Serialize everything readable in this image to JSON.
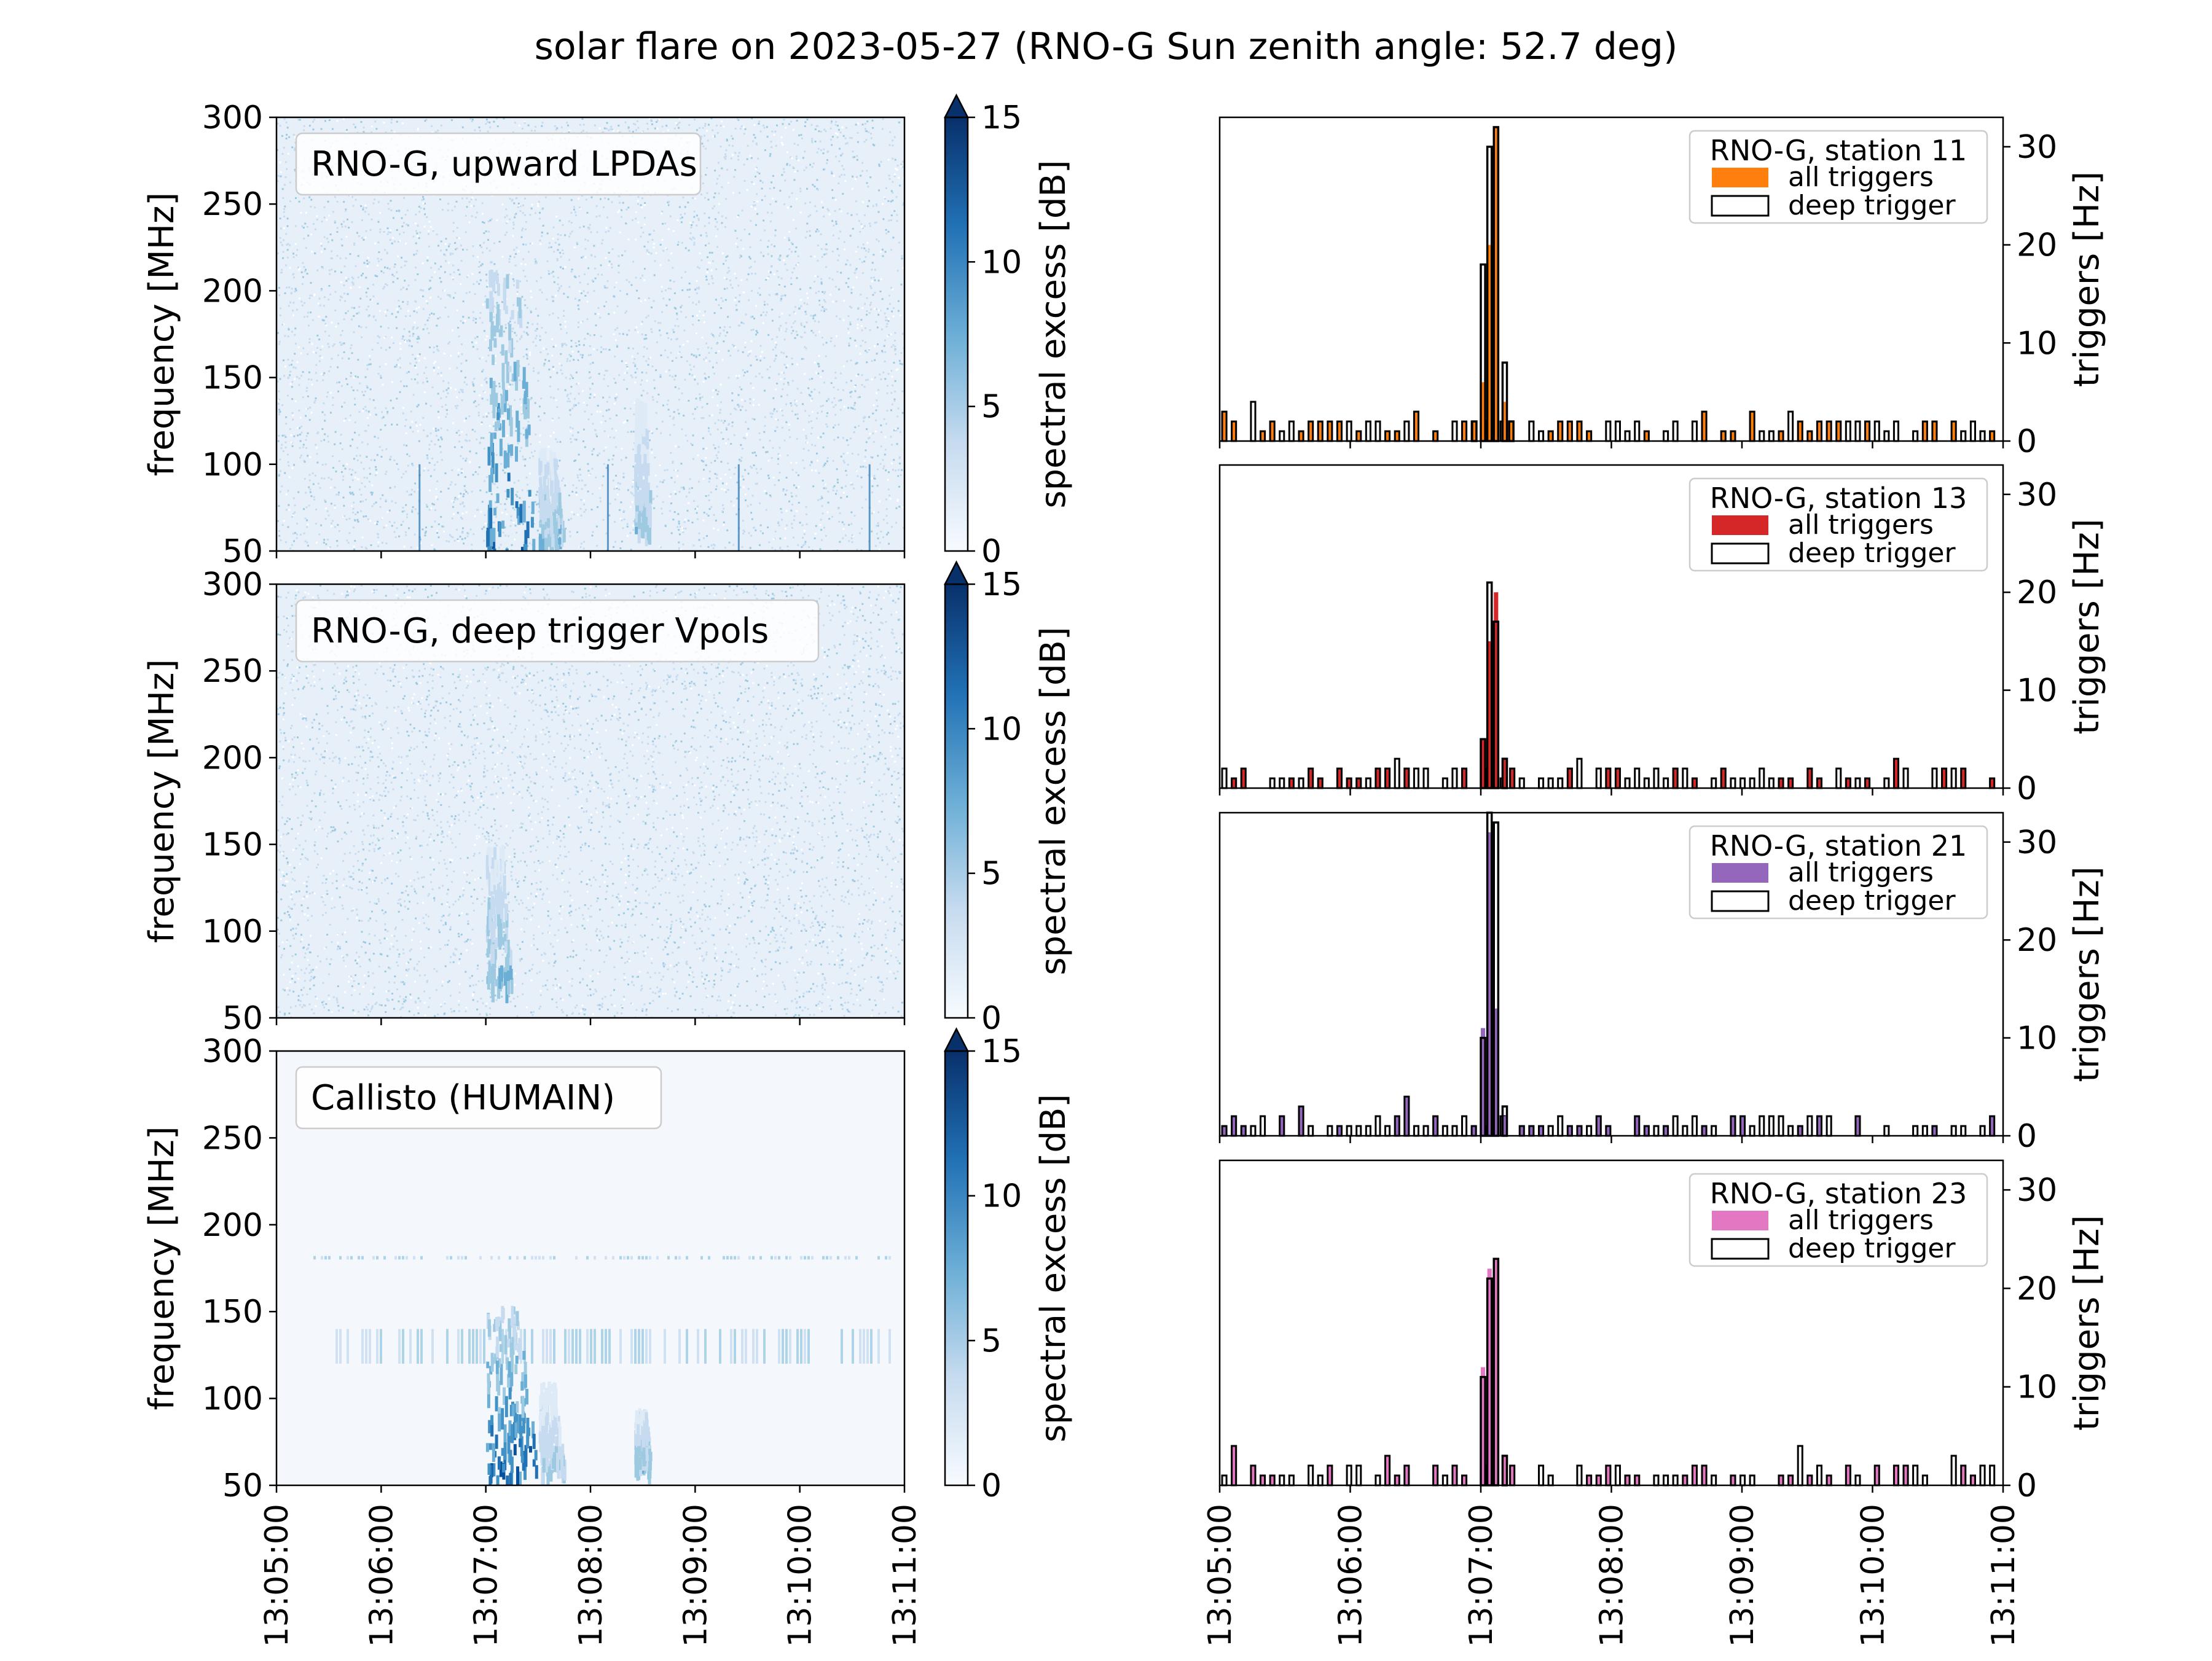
{
  "figure": {
    "title": "solar flare on 2023-05-27 (RNO-G Sun zenith angle: 52.7 deg)"
  },
  "chart_data": [
    {
      "type": "heatmap",
      "panel": "spectrogram",
      "label": "RNO-G, upward LPDAs",
      "ylabel": "frequency [MHz]",
      "colorbar_label": "spectral excess [dB]",
      "colorbar_ticks": [
        "0",
        "5",
        "10",
        "15"
      ],
      "colorbar_range": [
        0,
        15
      ],
      "colormap": "Blues",
      "ylim": [
        50,
        300
      ],
      "yticks": [
        "50",
        "100",
        "150",
        "200",
        "250",
        "300"
      ],
      "xlim": [
        "13:05:00",
        "13:11:00"
      ],
      "features": [
        {
          "t_start": "13:07:00",
          "t_end": "13:07:30",
          "f_low": 50,
          "f_high": 215,
          "peak_db": 13
        },
        {
          "t_start": "13:07:30",
          "t_end": "13:07:45",
          "f_low": 55,
          "f_high": 110,
          "peak_db": 8
        },
        {
          "t_start": "13:08:25",
          "t_end": "13:08:35",
          "f_low": 60,
          "f_high": 140,
          "peak_db": 7
        }
      ],
      "rfi_lines_time": [
        "13:06:22",
        "13:08:10",
        "13:09:25",
        "13:10:40"
      ]
    },
    {
      "type": "heatmap",
      "panel": "spectrogram",
      "label": "RNO-G, deep trigger Vpols",
      "ylabel": "frequency [MHz]",
      "colorbar_label": "spectral excess [dB]",
      "colorbar_ticks": [
        "0",
        "5",
        "10",
        "15"
      ],
      "colorbar_range": [
        0,
        15
      ],
      "colormap": "Blues",
      "ylim": [
        50,
        300
      ],
      "yticks": [
        "50",
        "100",
        "150",
        "200",
        "250",
        "300"
      ],
      "xlim": [
        "13:05:00",
        "13:11:00"
      ],
      "features": [
        {
          "t_start": "13:07:00",
          "t_end": "13:07:15",
          "f_low": 70,
          "f_high": 150,
          "peak_db": 8
        }
      ]
    },
    {
      "type": "heatmap",
      "panel": "spectrogram",
      "label": "Callisto (HUMAIN)",
      "ylabel": "frequency [MHz]",
      "colorbar_label": "spectral excess [dB]",
      "colorbar_ticks": [
        "0",
        "5",
        "10",
        "15"
      ],
      "colorbar_range": [
        0,
        15
      ],
      "colormap": "Blues",
      "ylim": [
        50,
        300
      ],
      "yticks": [
        "50",
        "100",
        "150",
        "200",
        "250",
        "300"
      ],
      "xlim": [
        "13:05:00",
        "13:11:00"
      ],
      "xticks": [
        "13:05:00",
        "13:06:00",
        "13:07:00",
        "13:08:00",
        "13:09:00",
        "13:10:00",
        "13:11:00"
      ],
      "features": [
        {
          "t_start": "13:07:00",
          "t_end": "13:07:30",
          "f_low": 55,
          "f_high": 155,
          "peak_db": 14
        },
        {
          "t_start": "13:07:30",
          "t_end": "13:07:45",
          "f_low": 60,
          "f_high": 110,
          "peak_db": 6
        },
        {
          "t_start": "13:08:25",
          "t_end": "13:08:35",
          "f_low": 60,
          "f_high": 95,
          "peak_db": 8
        }
      ],
      "band_rows_mhz": [
        [
          120,
          140
        ],
        [
          180,
          182
        ]
      ]
    },
    {
      "type": "bar",
      "panel": "trigger-rate",
      "legend_title": "RNO-G, station 11",
      "legend": [
        "all triggers",
        "deep trigger"
      ],
      "legend_placement": "top-right",
      "color": "#ff7f0e",
      "ylabel": "triggers [Hz]",
      "yticks": [
        "0",
        "10",
        "20",
        "30"
      ],
      "ylim": [
        0,
        33
      ],
      "xlim": [
        "13:05:00",
        "13:11:00"
      ],
      "series": [
        {
          "name": "all triggers",
          "x": [
            "13:06:56",
            "13:07:00",
            "13:07:03",
            "13:07:06",
            "13:07:10",
            "13:07:13"
          ],
          "values": [
            2,
            6,
            20,
            32,
            4,
            2
          ]
        },
        {
          "name": "deep trigger",
          "x": [
            "13:06:56",
            "13:07:00",
            "13:07:03",
            "13:07:06",
            "13:07:10",
            "13:07:13"
          ],
          "values": [
            2,
            18,
            30,
            32,
            8,
            2
          ]
        }
      ]
    },
    {
      "type": "bar",
      "panel": "trigger-rate",
      "legend_title": "RNO-G, station 13",
      "legend": [
        "all triggers",
        "deep trigger"
      ],
      "legend_placement": "top-right",
      "color": "#d62728",
      "ylabel": "triggers [Hz]",
      "yticks": [
        "0",
        "10",
        "20",
        "30"
      ],
      "ylim": [
        0,
        33
      ],
      "xlim": [
        "13:05:00",
        "13:11:00"
      ],
      "series": [
        {
          "name": "all triggers",
          "x": [
            "13:07:00",
            "13:07:03",
            "13:07:06",
            "13:07:10"
          ],
          "values": [
            5,
            15,
            20,
            3
          ]
        },
        {
          "name": "deep trigger",
          "x": [
            "13:07:00",
            "13:07:03",
            "13:07:06",
            "13:07:10"
          ],
          "values": [
            5,
            21,
            17,
            3
          ]
        }
      ]
    },
    {
      "type": "bar",
      "panel": "trigger-rate",
      "legend_title": "RNO-G, station 21",
      "legend": [
        "all triggers",
        "deep trigger"
      ],
      "legend_placement": "top-right",
      "color": "#9467bd",
      "ylabel": "triggers [Hz]",
      "yticks": [
        "0",
        "10",
        "20",
        "30"
      ],
      "ylim": [
        0,
        33
      ],
      "xlim": [
        "13:05:00",
        "13:11:00"
      ],
      "series": [
        {
          "name": "all triggers",
          "x": [
            "13:07:00",
            "13:07:03",
            "13:07:06",
            "13:07:10"
          ],
          "values": [
            11,
            31,
            13,
            2
          ]
        },
        {
          "name": "deep trigger",
          "x": [
            "13:07:00",
            "13:07:03",
            "13:07:06",
            "13:07:10"
          ],
          "values": [
            10,
            33,
            32,
            3
          ]
        }
      ]
    },
    {
      "type": "bar",
      "panel": "trigger-rate",
      "legend_title": "RNO-G, station 23",
      "legend": [
        "all triggers",
        "deep trigger"
      ],
      "legend_placement": "top-right",
      "color": "#e377c2",
      "ylabel": "triggers [Hz]",
      "yticks": [
        "0",
        "10",
        "20",
        "30"
      ],
      "ylim": [
        0,
        33
      ],
      "xlim": [
        "13:05:00",
        "13:11:00"
      ],
      "xticks": [
        "13:05:00",
        "13:06:00",
        "13:07:00",
        "13:08:00",
        "13:09:00",
        "13:10:00",
        "13:11:00"
      ],
      "series": [
        {
          "name": "all triggers",
          "x": [
            "13:07:00",
            "13:07:03",
            "13:07:06",
            "13:07:10"
          ],
          "values": [
            12,
            22,
            23,
            3
          ]
        },
        {
          "name": "deep trigger",
          "x": [
            "13:07:00",
            "13:07:03",
            "13:07:06",
            "13:07:10"
          ],
          "values": [
            11,
            21,
            23,
            3
          ]
        }
      ]
    }
  ]
}
